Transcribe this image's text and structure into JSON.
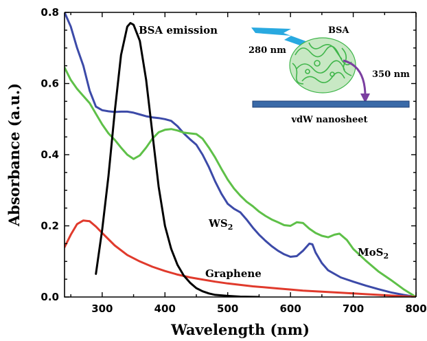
{
  "chart_data": {
    "type": "line",
    "title": "",
    "xlabel": "Wavelength (nm)",
    "ylabel": "Absorbance (a.u.)",
    "xlim": [
      240,
      800
    ],
    "ylim": [
      0,
      0.8
    ],
    "xticks": [
      300,
      400,
      500,
      600,
      700,
      800
    ],
    "yticks": [
      0.0,
      0.2,
      0.4,
      0.6,
      0.8
    ],
    "xtick_labels": [
      "300",
      "400",
      "500",
      "600",
      "700",
      "800"
    ],
    "ytick_labels": [
      "0.0",
      "0.2",
      "0.4",
      "0.6",
      "0.8"
    ],
    "grid": false,
    "series": [
      {
        "name": "WS2",
        "label_main": "WS",
        "label_sub": "2",
        "color": "#3c4aa8",
        "points": [
          [
            240,
            0.8
          ],
          [
            250,
            0.76
          ],
          [
            260,
            0.7
          ],
          [
            270,
            0.65
          ],
          [
            280,
            0.58
          ],
          [
            290,
            0.535
          ],
          [
            300,
            0.525
          ],
          [
            310,
            0.522
          ],
          [
            320,
            0.52
          ],
          [
            330,
            0.521
          ],
          [
            340,
            0.521
          ],
          [
            350,
            0.518
          ],
          [
            360,
            0.513
          ],
          [
            370,
            0.508
          ],
          [
            380,
            0.505
          ],
          [
            390,
            0.503
          ],
          [
            400,
            0.5
          ],
          [
            410,
            0.495
          ],
          [
            420,
            0.48
          ],
          [
            430,
            0.46
          ],
          [
            440,
            0.443
          ],
          [
            450,
            0.428
          ],
          [
            460,
            0.4
          ],
          [
            470,
            0.365
          ],
          [
            480,
            0.325
          ],
          [
            490,
            0.29
          ],
          [
            500,
            0.262
          ],
          [
            510,
            0.248
          ],
          [
            520,
            0.238
          ],
          [
            530,
            0.218
          ],
          [
            540,
            0.195
          ],
          [
            550,
            0.175
          ],
          [
            560,
            0.158
          ],
          [
            570,
            0.143
          ],
          [
            580,
            0.13
          ],
          [
            590,
            0.12
          ],
          [
            600,
            0.113
          ],
          [
            610,
            0.115
          ],
          [
            620,
            0.13
          ],
          [
            630,
            0.15
          ],
          [
            635,
            0.148
          ],
          [
            640,
            0.125
          ],
          [
            650,
            0.095
          ],
          [
            660,
            0.075
          ],
          [
            680,
            0.055
          ],
          [
            700,
            0.043
          ],
          [
            720,
            0.032
          ],
          [
            740,
            0.022
          ],
          [
            760,
            0.013
          ],
          [
            780,
            0.006
          ],
          [
            800,
            0.0
          ]
        ]
      },
      {
        "name": "MoS2",
        "label_main": "MoS",
        "label_sub": "2",
        "color": "#5ec048",
        "points": [
          [
            240,
            0.645
          ],
          [
            250,
            0.61
          ],
          [
            260,
            0.585
          ],
          [
            270,
            0.565
          ],
          [
            280,
            0.545
          ],
          [
            290,
            0.515
          ],
          [
            300,
            0.485
          ],
          [
            310,
            0.46
          ],
          [
            320,
            0.442
          ],
          [
            330,
            0.42
          ],
          [
            340,
            0.4
          ],
          [
            350,
            0.388
          ],
          [
            360,
            0.398
          ],
          [
            370,
            0.42
          ],
          [
            380,
            0.445
          ],
          [
            390,
            0.463
          ],
          [
            400,
            0.47
          ],
          [
            410,
            0.472
          ],
          [
            420,
            0.468
          ],
          [
            430,
            0.462
          ],
          [
            440,
            0.46
          ],
          [
            450,
            0.458
          ],
          [
            460,
            0.445
          ],
          [
            470,
            0.42
          ],
          [
            480,
            0.392
          ],
          [
            490,
            0.36
          ],
          [
            500,
            0.33
          ],
          [
            510,
            0.305
          ],
          [
            520,
            0.285
          ],
          [
            530,
            0.268
          ],
          [
            540,
            0.255
          ],
          [
            550,
            0.24
          ],
          [
            560,
            0.228
          ],
          [
            570,
            0.218
          ],
          [
            580,
            0.21
          ],
          [
            590,
            0.202
          ],
          [
            600,
            0.2
          ],
          [
            610,
            0.21
          ],
          [
            620,
            0.208
          ],
          [
            630,
            0.192
          ],
          [
            640,
            0.18
          ],
          [
            650,
            0.172
          ],
          [
            660,
            0.168
          ],
          [
            670,
            0.175
          ],
          [
            678,
            0.178
          ],
          [
            690,
            0.16
          ],
          [
            700,
            0.135
          ],
          [
            720,
            0.102
          ],
          [
            740,
            0.072
          ],
          [
            760,
            0.048
          ],
          [
            780,
            0.022
          ],
          [
            800,
            0.0
          ]
        ]
      },
      {
        "name": "Graphene",
        "label_main": "Graphene",
        "label_sub": "",
        "color": "#e03a2c",
        "points": [
          [
            240,
            0.14
          ],
          [
            250,
            0.175
          ],
          [
            260,
            0.205
          ],
          [
            270,
            0.215
          ],
          [
            280,
            0.213
          ],
          [
            290,
            0.198
          ],
          [
            300,
            0.18
          ],
          [
            320,
            0.145
          ],
          [
            340,
            0.118
          ],
          [
            360,
            0.1
          ],
          [
            380,
            0.085
          ],
          [
            400,
            0.073
          ],
          [
            420,
            0.063
          ],
          [
            440,
            0.055
          ],
          [
            460,
            0.049
          ],
          [
            480,
            0.043
          ],
          [
            500,
            0.038
          ],
          [
            520,
            0.034
          ],
          [
            540,
            0.03
          ],
          [
            560,
            0.027
          ],
          [
            580,
            0.024
          ],
          [
            600,
            0.021
          ],
          [
            620,
            0.018
          ],
          [
            640,
            0.016
          ],
          [
            660,
            0.014
          ],
          [
            680,
            0.012
          ],
          [
            700,
            0.01
          ],
          [
            720,
            0.008
          ],
          [
            740,
            0.006
          ],
          [
            760,
            0.004
          ],
          [
            780,
            0.002
          ],
          [
            800,
            0.0
          ]
        ]
      },
      {
        "name": "BSA emission",
        "label_main": "BSA emission",
        "label_sub": "",
        "color": "#000000",
        "points": [
          [
            290,
            0.065
          ],
          [
            300,
            0.19
          ],
          [
            310,
            0.34
          ],
          [
            320,
            0.52
          ],
          [
            330,
            0.68
          ],
          [
            340,
            0.76
          ],
          [
            345,
            0.77
          ],
          [
            350,
            0.765
          ],
          [
            360,
            0.72
          ],
          [
            370,
            0.61
          ],
          [
            380,
            0.46
          ],
          [
            390,
            0.31
          ],
          [
            400,
            0.2
          ],
          [
            410,
            0.135
          ],
          [
            420,
            0.09
          ],
          [
            430,
            0.06
          ],
          [
            440,
            0.04
          ],
          [
            450,
            0.025
          ],
          [
            460,
            0.016
          ],
          [
            470,
            0.01
          ],
          [
            480,
            0.006
          ],
          [
            500,
            0.003
          ],
          [
            520,
            0.001
          ],
          [
            550,
            0.0
          ]
        ]
      }
    ],
    "inset": {
      "molecule_label": "BSA",
      "excitation_label": "280 nm",
      "emission_label": "350 nm",
      "substrate_label": "vdW nanosheet",
      "bolt_color": "#29a9e0",
      "arrow_color": "#7b3fa0",
      "sheet_color": "#3a6aa8",
      "protein_color": "#3fb54a"
    }
  }
}
